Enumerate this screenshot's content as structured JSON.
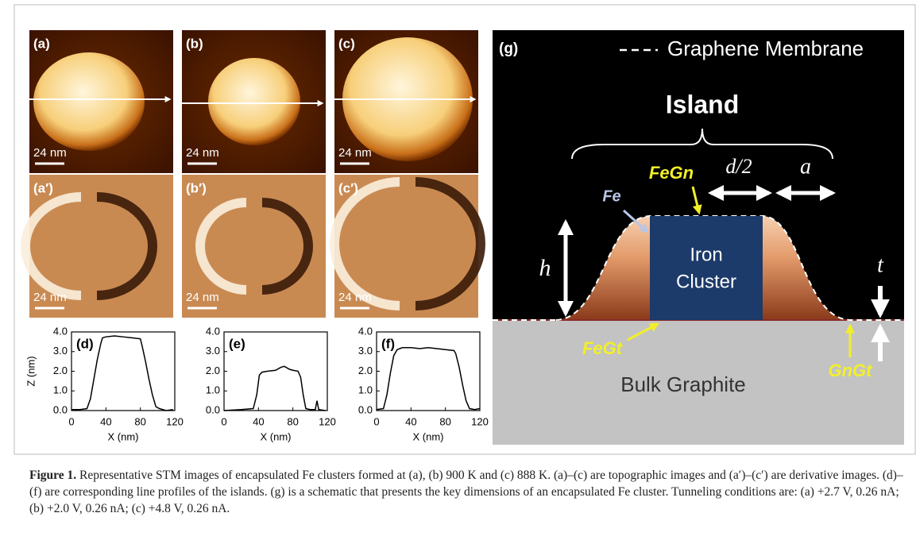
{
  "panels": {
    "topographic": [
      "(a)",
      "(b)",
      "(c)"
    ],
    "derivative": [
      "(a′)",
      "(b′)",
      "(c′)"
    ],
    "scale_bars": [
      "24 nm",
      "24 nm",
      "24 nm",
      "24 nm",
      "24 nm",
      "24 nm"
    ]
  },
  "chart_data": [
    {
      "type": "line",
      "title": "(d)",
      "xlabel": "X (nm)",
      "ylabel": "Z (nm)",
      "color": "#000000",
      "x": [
        0,
        10,
        18,
        22,
        26,
        30,
        34,
        36,
        40,
        50,
        60,
        70,
        80,
        82,
        86,
        90,
        94,
        98,
        102,
        110,
        118
      ],
      "values": [
        0.05,
        0.05,
        0.1,
        0.6,
        1.6,
        2.6,
        3.4,
        3.7,
        3.75,
        3.8,
        3.75,
        3.7,
        3.65,
        3.3,
        2.5,
        1.6,
        0.8,
        0.2,
        0.1,
        0.0,
        0.05
      ],
      "xlim": [
        0,
        120
      ],
      "xticks": [
        0,
        40,
        80,
        120
      ],
      "ylim": [
        0,
        4
      ],
      "yticks": [
        {
          "value": 0,
          "label": "0.0"
        },
        {
          "value": 1,
          "label": "1.0"
        },
        {
          "value": 2,
          "label": "2.0"
        },
        {
          "value": 3,
          "label": "3.0"
        },
        {
          "value": 4,
          "label": "4.0"
        }
      ]
    },
    {
      "type": "line",
      "title": "(e)",
      "xlabel": "X (nm)",
      "color": "#000000",
      "x": [
        0,
        20,
        34,
        38,
        41,
        44,
        50,
        60,
        66,
        70,
        76,
        80,
        86,
        89,
        92,
        95,
        100,
        106,
        108,
        110,
        118
      ],
      "values": [
        0.0,
        0.05,
        0.1,
        0.8,
        1.8,
        1.95,
        2.0,
        2.05,
        2.2,
        2.25,
        2.1,
        2.05,
        2.0,
        1.7,
        0.8,
        0.1,
        0.05,
        0.05,
        0.5,
        0.05,
        0.0
      ],
      "xlim": [
        0,
        120
      ],
      "xticks": [
        0,
        40,
        80,
        120
      ],
      "ylim": [
        0,
        4
      ],
      "yticks": [
        {
          "value": 0,
          "label": "0.0"
        },
        {
          "value": 1,
          "label": "1.0"
        },
        {
          "value": 2,
          "label": "2.0"
        },
        {
          "value": 3,
          "label": "3.0"
        },
        {
          "value": 4,
          "label": "4.0"
        }
      ]
    },
    {
      "type": "line",
      "title": "(f)",
      "xlabel": "X (nm)",
      "color": "#000000",
      "x": [
        0,
        8,
        12,
        16,
        20,
        24,
        30,
        40,
        50,
        60,
        70,
        80,
        90,
        92,
        96,
        100,
        104,
        108,
        114,
        120
      ],
      "values": [
        0.05,
        0.1,
        0.8,
        1.9,
        2.8,
        3.1,
        3.2,
        3.2,
        3.15,
        3.2,
        3.15,
        3.1,
        3.05,
        2.9,
        2.2,
        1.3,
        0.5,
        0.1,
        0.05,
        0.1
      ],
      "xlim": [
        0,
        120
      ],
      "xticks": [
        0,
        40,
        80,
        120
      ],
      "ylim": [
        0,
        4
      ],
      "yticks": [
        {
          "value": 0,
          "label": "0.0"
        },
        {
          "value": 1,
          "label": "1.0"
        },
        {
          "value": 2,
          "label": "2.0"
        },
        {
          "value": 3,
          "label": "3.0"
        },
        {
          "value": 4,
          "label": "4.0"
        }
      ]
    }
  ],
  "schematic": {
    "label": "(g)",
    "legend": "Graphene Membrane",
    "island": "Island",
    "half_diameter": "d/2",
    "a": "a",
    "fegn": "FeGn",
    "fe": "Fe",
    "h": "h",
    "cluster": [
      "Iron",
      "Cluster"
    ],
    "t": "t",
    "fegt": "FeGt",
    "gngt": "GnGt",
    "substrate": "Bulk Graphite"
  },
  "caption": {
    "label": "Figure 1.",
    "text": "Representative STM images of encapsulated Fe clusters formed at (a), (b) 900 K and (c) 888 K. (a)–(c) are topographic images and (a′)–(c′) are derivative images. (d)–(f) are corresponding line profiles of the islands. (g) is a schematic that presents the key dimensions of an encapsulated Fe cluster. Tunneling conditions are: (a) +2.7 V, 0.26 nA; (b) +2.0 V, 0.26 nA; (c) +4.8 V, 0.26 nA."
  }
}
